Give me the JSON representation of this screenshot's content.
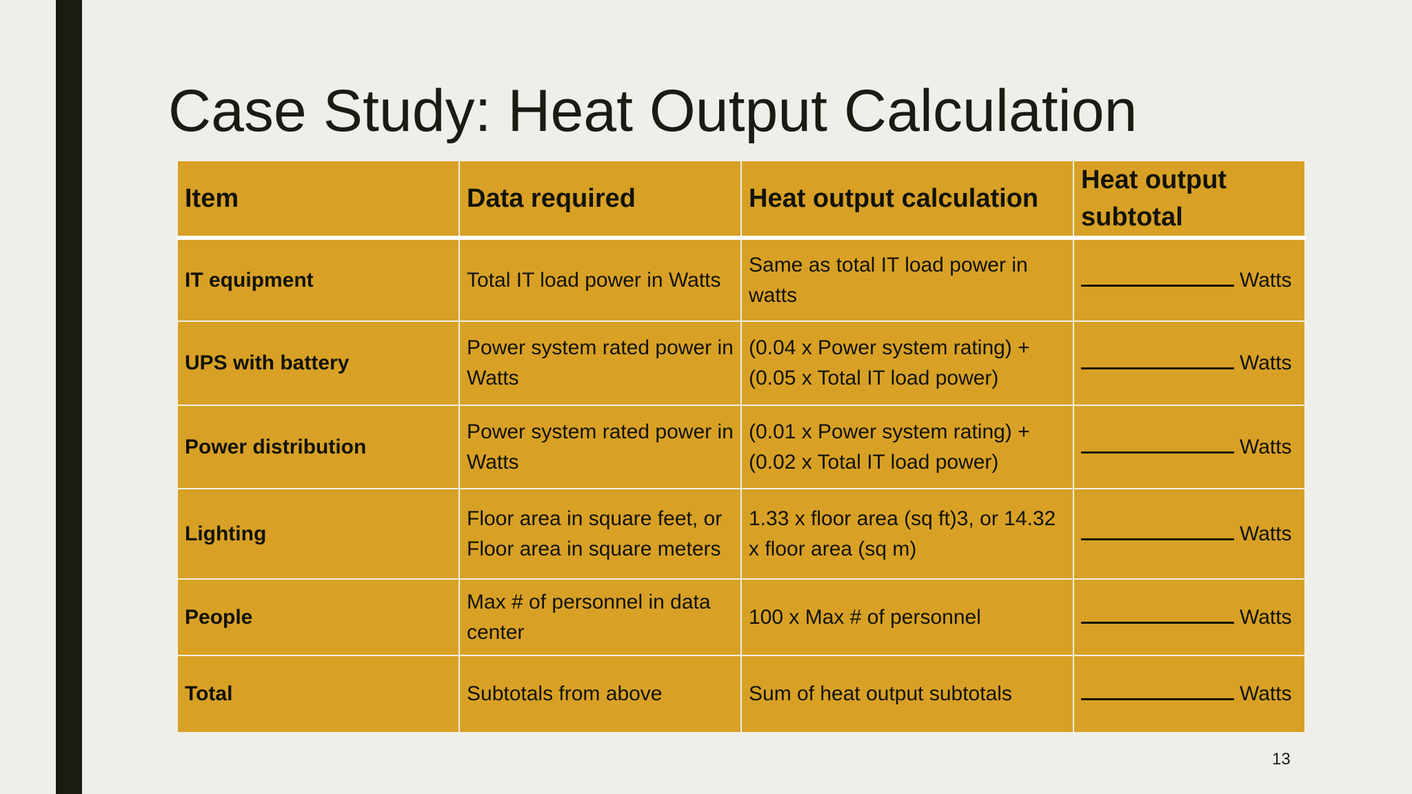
{
  "slide": {
    "title": "Case Study: Heat Output Calculation",
    "page_number": "13"
  },
  "table": {
    "headers": [
      "Item",
      "Data required",
      "Heat output calculation",
      "Heat output subtotal"
    ],
    "rows": [
      {
        "item": "IT equipment",
        "data_required": "Total IT load power in Watts",
        "calculation": "Same as total IT load power in watts",
        "unit": "Watts"
      },
      {
        "item": "UPS with battery",
        "data_required": "Power system rated power in Watts",
        "calculation": "(0.04 x Power system rating) + (0.05 x Total IT load power)",
        "unit": "Watts"
      },
      {
        "item": "Power distribution",
        "data_required": "Power system rated power in Watts",
        "calculation": "(0.01 x Power system rating) + (0.02 x Total IT load power)",
        "unit": "Watts"
      },
      {
        "item": "Lighting",
        "data_required": "Floor area in square feet, or Floor area in square meters",
        "calculation": "1.33 x floor area (sq ft)3, or 14.32 x floor area (sq m)",
        "unit": "Watts"
      },
      {
        "item": "People",
        "data_required": "Max # of personnel in data center",
        "calculation": "100 x Max # of personnel",
        "unit": "Watts"
      },
      {
        "item": "Total",
        "data_required": "Subtotals from above",
        "calculation": "Sum of heat output subtotals",
        "unit": "Watts"
      }
    ]
  },
  "colors": {
    "table_fill": "#d8a126",
    "background": "#efefea",
    "accent_bar": "#1b1b14"
  }
}
